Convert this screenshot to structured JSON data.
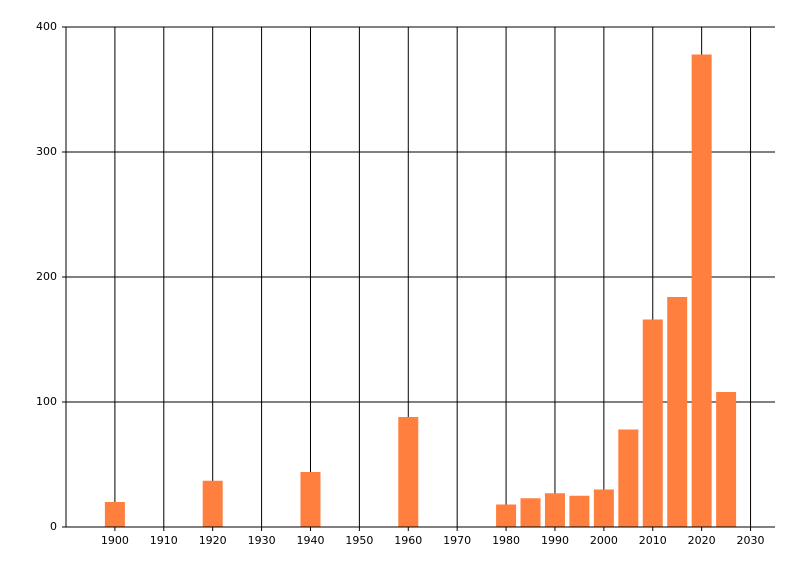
{
  "chart_data": {
    "type": "bar",
    "x": [
      1900,
      1920,
      1940,
      1960,
      1980,
      1985,
      1990,
      1995,
      2000,
      2005,
      2010,
      2015,
      2020,
      2025
    ],
    "values": [
      20,
      37,
      44,
      88,
      18,
      23,
      27,
      25,
      30,
      78,
      166,
      184,
      378,
      108
    ],
    "color": "#ff7f3f",
    "xlim": [
      1890,
      2035
    ],
    "xticks": [
      1900,
      1910,
      1920,
      1930,
      1940,
      1950,
      1960,
      1970,
      1980,
      1990,
      2000,
      2010,
      2020,
      2030
    ],
    "ylim": [
      0,
      400
    ],
    "yticks": [
      0,
      100,
      200,
      300,
      400
    ],
    "grid": true
  }
}
